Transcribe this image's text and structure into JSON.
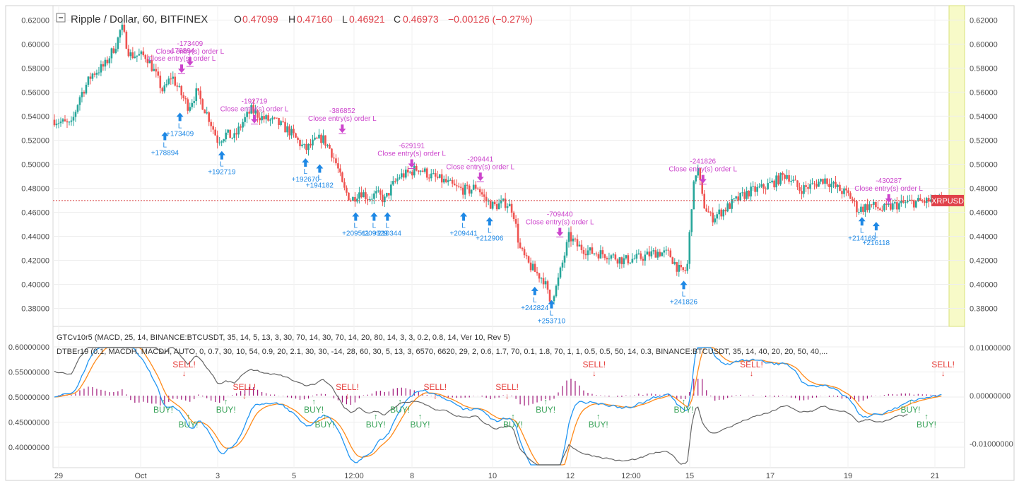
{
  "header": {
    "collapse_icon": "minus-square-icon",
    "title": "Ripple / Dollar, 60, BITFINEX",
    "o_label": "O",
    "o_value": "0.47099",
    "h_label": "H",
    "h_value": "0.47160",
    "l_label": "L",
    "l_value": "0.46921",
    "c_label": "C",
    "c_value": "0.46973",
    "change": "−0.00126 (−0.27%)"
  },
  "indicators": {
    "line1": "GTCv10r5 (MACD, 25, 14, BINANCE:BTCUSDT, 35, 14, 5, 13, 3, 30, 70, 14, 30, 70, 14, 20, 80, 14, 3, 3, 0.2, 0.8, 14, Ver 10, Rev 5)",
    "line2": "DTBEr19 (0.1, MACDH, MACDH, AUTO, 0, 0.7, 30, 10, 54, 0.9, 20, 2.1, 30, 30, -14, 28, 60, 30, 5, 13, 3, 6570, 6620, 29, 2, 0.6, 1.7, 70, 0.1, 1.8, 70, 1, 1, 0.5, 0.5, 50, 14, 0.3, BINANCE:BTCUSDT, 35, 14, 40, 20, 20, 50, 40,..."
  },
  "colors": {
    "up": "#26a69a",
    "down": "#ef5350",
    "accent_purple": "#cc44cc",
    "accent_blue": "#1e88e5",
    "buy": "#3aa35a",
    "sell": "#e53935",
    "macd": "#2196f3",
    "signal": "#ff8a1a",
    "hist": "#a0187a",
    "btc": "#666666"
  },
  "chart_data": [
    {
      "type": "candlestick",
      "title": "Ripple / Dollar, 60, BITFINEX",
      "symbol_label": "XRPUSD",
      "last_price": 0.46973,
      "ylim": [
        0.365,
        0.632
      ],
      "y_ticks": [
        "0.62000",
        "0.60000",
        "0.58000",
        "0.56000",
        "0.54000",
        "0.52000",
        "0.50000",
        "0.48000",
        "0.46000",
        "0.44000",
        "0.42000",
        "0.40000",
        "0.38000"
      ],
      "y_tick_values": [
        0.62,
        0.6,
        0.58,
        0.56,
        0.54,
        0.52,
        0.5,
        0.48,
        0.46,
        0.44,
        0.42,
        0.4,
        0.38
      ],
      "x_ticks": [
        "29",
        "Oct",
        "3",
        "5",
        "12:00",
        "8",
        "10",
        "12",
        "12:00",
        "15",
        "17",
        "19",
        "21"
      ],
      "grid": true,
      "price_path": [
        {
          "t": 0,
          "p": 0.537
        },
        {
          "t": 20,
          "p": 0.532
        },
        {
          "t": 30,
          "p": 0.556
        },
        {
          "t": 45,
          "p": 0.575
        },
        {
          "t": 60,
          "p": 0.582
        },
        {
          "t": 75,
          "p": 0.602
        },
        {
          "t": 80,
          "p": 0.615
        },
        {
          "t": 90,
          "p": 0.591
        },
        {
          "t": 110,
          "p": 0.59
        },
        {
          "t": 120,
          "p": 0.576
        },
        {
          "t": 130,
          "p": 0.56
        },
        {
          "t": 140,
          "p": 0.574
        },
        {
          "t": 150,
          "p": 0.56
        },
        {
          "t": 160,
          "p": 0.548
        },
        {
          "t": 170,
          "p": 0.56
        },
        {
          "t": 185,
          "p": 0.538
        },
        {
          "t": 195,
          "p": 0.52
        },
        {
          "t": 205,
          "p": 0.525
        },
        {
          "t": 215,
          "p": 0.522
        },
        {
          "t": 225,
          "p": 0.535
        },
        {
          "t": 235,
          "p": 0.545
        },
        {
          "t": 250,
          "p": 0.538
        },
        {
          "t": 265,
          "p": 0.535
        },
        {
          "t": 280,
          "p": 0.528
        },
        {
          "t": 290,
          "p": 0.52
        },
        {
          "t": 300,
          "p": 0.512
        },
        {
          "t": 310,
          "p": 0.518
        },
        {
          "t": 320,
          "p": 0.522
        },
        {
          "t": 330,
          "p": 0.512
        },
        {
          "t": 338,
          "p": 0.498
        },
        {
          "t": 345,
          "p": 0.48
        },
        {
          "t": 355,
          "p": 0.47
        },
        {
          "t": 365,
          "p": 0.478
        },
        {
          "t": 375,
          "p": 0.472
        },
        {
          "t": 385,
          "p": 0.475
        },
        {
          "t": 395,
          "p": 0.47
        },
        {
          "t": 402,
          "p": 0.48
        },
        {
          "t": 412,
          "p": 0.49
        },
        {
          "t": 422,
          "p": 0.492
        },
        {
          "t": 435,
          "p": 0.497
        },
        {
          "t": 450,
          "p": 0.49
        },
        {
          "t": 465,
          "p": 0.486
        },
        {
          "t": 480,
          "p": 0.48
        },
        {
          "t": 495,
          "p": 0.478
        },
        {
          "t": 505,
          "p": 0.482
        },
        {
          "t": 515,
          "p": 0.47
        },
        {
          "t": 525,
          "p": 0.465
        },
        {
          "t": 540,
          "p": 0.468
        },
        {
          "t": 548,
          "p": 0.462
        },
        {
          "t": 556,
          "p": 0.43
        },
        {
          "t": 565,
          "p": 0.418
        },
        {
          "t": 575,
          "p": 0.41
        },
        {
          "t": 585,
          "p": 0.404
        },
        {
          "t": 592,
          "p": 0.386
        },
        {
          "t": 600,
          "p": 0.398
        },
        {
          "t": 608,
          "p": 0.42
        },
        {
          "t": 615,
          "p": 0.44
        },
        {
          "t": 625,
          "p": 0.432
        },
        {
          "t": 640,
          "p": 0.427
        },
        {
          "t": 660,
          "p": 0.425
        },
        {
          "t": 680,
          "p": 0.42
        },
        {
          "t": 700,
          "p": 0.422
        },
        {
          "t": 720,
          "p": 0.427
        },
        {
          "t": 735,
          "p": 0.425
        },
        {
          "t": 748,
          "p": 0.41
        },
        {
          "t": 756,
          "p": 0.412
        },
        {
          "t": 762,
          "p": 0.472
        },
        {
          "t": 768,
          "p": 0.5
        },
        {
          "t": 775,
          "p": 0.468
        },
        {
          "t": 785,
          "p": 0.455
        },
        {
          "t": 800,
          "p": 0.462
        },
        {
          "t": 815,
          "p": 0.47
        },
        {
          "t": 830,
          "p": 0.477
        },
        {
          "t": 845,
          "p": 0.48
        },
        {
          "t": 860,
          "p": 0.485
        },
        {
          "t": 875,
          "p": 0.492
        },
        {
          "t": 890,
          "p": 0.479
        },
        {
          "t": 905,
          "p": 0.482
        },
        {
          "t": 920,
          "p": 0.488
        },
        {
          "t": 935,
          "p": 0.48
        },
        {
          "t": 950,
          "p": 0.474
        },
        {
          "t": 960,
          "p": 0.462
        },
        {
          "t": 975,
          "p": 0.466
        },
        {
          "t": 990,
          "p": 0.462
        },
        {
          "t": 1005,
          "p": 0.466
        },
        {
          "t": 1020,
          "p": 0.468
        },
        {
          "t": 1040,
          "p": 0.469
        },
        {
          "t": 1060,
          "p": 0.47
        }
      ],
      "markers": [
        {
          "kind": "long",
          "t": 132,
          "price_anchor": 0.527,
          "text": "+178894",
          "sub": "L"
        },
        {
          "kind": "long",
          "t": 150,
          "price_anchor": 0.543,
          "text": "+173409",
          "sub": "L"
        },
        {
          "kind": "long",
          "t": 200,
          "price_anchor": 0.511,
          "text": "+192719",
          "sub": "L"
        },
        {
          "kind": "long",
          "t": 300,
          "price_anchor": 0.505,
          "text": "+192670",
          "sub": "L"
        },
        {
          "kind": "long",
          "t": 317,
          "price_anchor": 0.5,
          "text": "+194182",
          "sub": "L"
        },
        {
          "kind": "long",
          "t": 360,
          "price_anchor": 0.46,
          "text": "+209511",
          "sub": "L"
        },
        {
          "kind": "long",
          "t": 382,
          "price_anchor": 0.46,
          "text": "+209329",
          "sub": "L"
        },
        {
          "kind": "long",
          "t": 398,
          "price_anchor": 0.46,
          "text": "+210344",
          "sub": "L"
        },
        {
          "kind": "long",
          "t": 489,
          "price_anchor": 0.46,
          "text": "+209441",
          "sub": "L"
        },
        {
          "kind": "long",
          "t": 520,
          "price_anchor": 0.456,
          "text": "+212906",
          "sub": "L"
        },
        {
          "kind": "long",
          "t": 574,
          "price_anchor": 0.398,
          "text": "+242824",
          "sub": "L"
        },
        {
          "kind": "long",
          "t": 594,
          "price_anchor": 0.387,
          "text": "+253710",
          "sub": "L"
        },
        {
          "kind": "long",
          "t": 752,
          "price_anchor": 0.403,
          "text": "+241826",
          "sub": "L"
        },
        {
          "kind": "long",
          "t": 965,
          "price_anchor": 0.456,
          "text": "+214169",
          "sub": "L"
        },
        {
          "kind": "long",
          "t": 982,
          "price_anchor": 0.452,
          "text": "+216118",
          "sub": "L"
        },
        {
          "kind": "close",
          "t": 152,
          "price_anchor": 0.576,
          "text": "-178894",
          "sub": "Close entry(s) order L"
        },
        {
          "kind": "close",
          "t": 162,
          "price_anchor": 0.582,
          "text": "-173409",
          "sub": "Close entry(s) order L"
        },
        {
          "kind": "close",
          "t": 239,
          "price_anchor": 0.534,
          "text": "-192719",
          "sub": "Close entry(s) order L"
        },
        {
          "kind": "close",
          "t": 344,
          "price_anchor": 0.526,
          "text": "-386852",
          "sub": "Close entry(s) order L"
        },
        {
          "kind": "close",
          "t": 427,
          "price_anchor": 0.497,
          "text": "-629191",
          "sub": "Close entry(s) order L"
        },
        {
          "kind": "close",
          "t": 509,
          "price_anchor": 0.486,
          "text": "-209441",
          "sub": "Close entry(s) order L"
        },
        {
          "kind": "close",
          "t": 604,
          "price_anchor": 0.44,
          "text": "-709440",
          "sub": "Close entry(s) order L"
        },
        {
          "kind": "close",
          "t": 775,
          "price_anchor": 0.484,
          "text": "-241826",
          "sub": "Close entry(s) order L"
        },
        {
          "kind": "close",
          "t": 997,
          "price_anchor": 0.468,
          "text": "-430287",
          "sub": "Close entry(s) order L"
        }
      ]
    },
    {
      "type": "line",
      "title": "GTCv10r5 / DTBEr19",
      "left_ticks": [
        "0.60000000",
        "0.55000000",
        "0.50000000",
        "0.45000000",
        "0.40000000"
      ],
      "left_tick_values": [
        0.6,
        0.55,
        0.5,
        0.45,
        0.4
      ],
      "right_ticks": [
        "0.01000000",
        "0.00000000",
        "-0.01000000"
      ],
      "right_tick_values": [
        0.01,
        0.0,
        -0.01
      ],
      "signals": [
        {
          "kind": "sell",
          "t": 155,
          "text": "SELL!"
        },
        {
          "kind": "buy",
          "t": 130,
          "text": "BUY!"
        },
        {
          "kind": "buy",
          "t": 160,
          "text": "BUY!"
        },
        {
          "kind": "buy",
          "t": 205,
          "text": "BUY!"
        },
        {
          "kind": "sell",
          "t": 227,
          "text": "SELL!"
        },
        {
          "kind": "buy",
          "t": 310,
          "text": "BUY!"
        },
        {
          "kind": "buy",
          "t": 323,
          "text": "BUY!"
        },
        {
          "kind": "sell",
          "t": 350,
          "text": "SELL!"
        },
        {
          "kind": "buy",
          "t": 384,
          "text": "BUY!"
        },
        {
          "kind": "buy",
          "t": 413,
          "text": "BUY!"
        },
        {
          "kind": "buy",
          "t": 437,
          "text": "BUY!"
        },
        {
          "kind": "sell",
          "t": 455,
          "text": "SELL!"
        },
        {
          "kind": "buy",
          "t": 548,
          "text": "BUY!"
        },
        {
          "kind": "buy",
          "t": 587,
          "text": "BUY!"
        },
        {
          "kind": "sell",
          "t": 541,
          "text": "SELL!"
        },
        {
          "kind": "sell",
          "t": 645,
          "text": "SELL!"
        },
        {
          "kind": "buy",
          "t": 650,
          "text": "BUY!"
        },
        {
          "kind": "buy",
          "t": 752,
          "text": "BUY!"
        },
        {
          "kind": "sell",
          "t": 833,
          "text": "SELL!"
        },
        {
          "kind": "buy",
          "t": 1023,
          "text": "BUY!"
        },
        {
          "kind": "buy",
          "t": 1042,
          "text": "BUY!"
        },
        {
          "kind": "sell",
          "t": 1062,
          "text": "SELL!"
        }
      ]
    }
  ]
}
